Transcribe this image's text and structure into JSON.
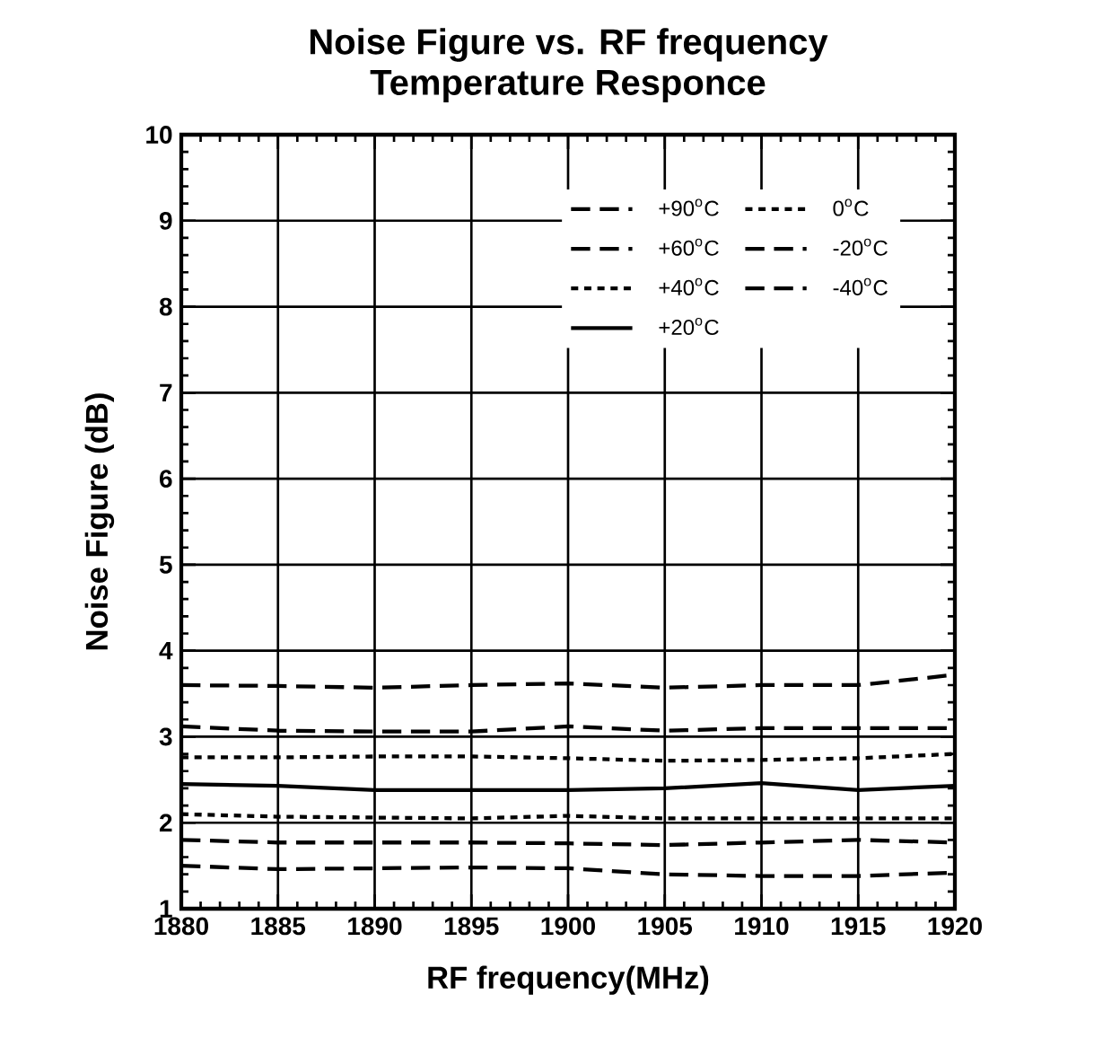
{
  "chart_data": {
    "type": "line",
    "title": "Noise Figure vs. RF frequency\nTemperature Responce",
    "xlabel": "RF frequency(MHz)",
    "ylabel": "Noise Figure (dB)",
    "x": [
      1880,
      1885,
      1890,
      1895,
      1900,
      1905,
      1910,
      1915,
      1920
    ],
    "series": [
      {
        "name": "+90$^{o}$C",
        "color": "#000000",
        "line_style": "dashed",
        "values": [
          3.6,
          3.59,
          3.57,
          3.6,
          3.62,
          3.57,
          3.6,
          3.6,
          3.72
        ]
      },
      {
        "name": "+60$^{o}$C",
        "color": "#000000",
        "line_style": "dashed",
        "values": [
          3.12,
          3.07,
          3.06,
          3.06,
          3.12,
          3.07,
          3.1,
          3.1,
          3.1
        ]
      },
      {
        "name": "+40$^{o}$C",
        "color": "#000000",
        "line_style": "dotted",
        "values": [
          2.76,
          2.76,
          2.77,
          2.77,
          2.75,
          2.72,
          2.73,
          2.75,
          2.8
        ]
      },
      {
        "name": "+20$^{o}$C",
        "color": "#000000",
        "line_style": "solid",
        "values": [
          2.45,
          2.43,
          2.38,
          2.38,
          2.38,
          2.4,
          2.46,
          2.38,
          2.43
        ]
      },
      {
        "name": "0$^{o}$C",
        "color": "#000000",
        "line_style": "dotted",
        "values": [
          2.1,
          2.07,
          2.06,
          2.05,
          2.08,
          2.05,
          2.05,
          2.05,
          2.05
        ]
      },
      {
        "name": "-20$^{o}$C",
        "color": "#000000",
        "line_style": "dashed",
        "values": [
          1.8,
          1.77,
          1.77,
          1.77,
          1.76,
          1.74,
          1.77,
          1.8,
          1.77
        ]
      },
      {
        "name": "-40$^{o}$C",
        "color": "#000000",
        "line_style": "dashed",
        "values": [
          1.5,
          1.46,
          1.47,
          1.48,
          1.47,
          1.4,
          1.38,
          1.38,
          1.42
        ]
      }
    ],
    "xlim": [
      1880,
      1920
    ],
    "ylim": [
      1,
      10
    ],
    "xticks": [
      1880,
      1885,
      1890,
      1895,
      1900,
      1905,
      1910,
      1915,
      1920
    ],
    "yticks": [
      1,
      2,
      3,
      4,
      5,
      6,
      7,
      8,
      9,
      10
    ],
    "grid": true,
    "legend": "top right",
    "marker": "none"
  }
}
